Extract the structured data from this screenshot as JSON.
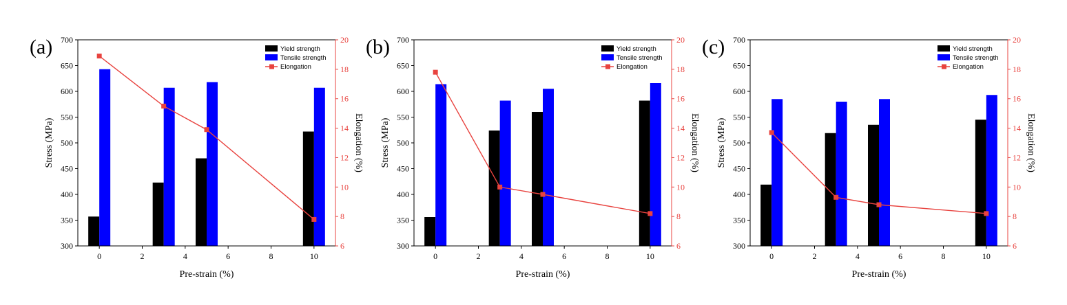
{
  "chart_data": [
    {
      "panel_label": "(a)",
      "type": "bar",
      "xlabel": "Pre-strain (%)",
      "ylabel": "Stress (MPa)",
      "y2label": "Elongation (%)",
      "xlim": [
        -1,
        11
      ],
      "ylim": [
        300,
        700
      ],
      "y2lim": [
        6,
        20
      ],
      "xticks": [
        0,
        2,
        4,
        6,
        8,
        10
      ],
      "yticks": [
        300,
        350,
        400,
        450,
        500,
        550,
        600,
        650,
        700
      ],
      "y2ticks": [
        6,
        8,
        10,
        12,
        14,
        16,
        18,
        20
      ],
      "x": [
        0,
        3,
        5,
        10
      ],
      "series": [
        {
          "name": "Yield strength",
          "kind": "bar",
          "color": "#000000",
          "values": [
            357,
            423,
            470,
            522
          ]
        },
        {
          "name": "Tensile strength",
          "kind": "bar",
          "color": "#0000ff",
          "values": [
            643,
            607,
            618,
            607
          ]
        },
        {
          "name": "Elongation",
          "kind": "line",
          "axis": "right",
          "color": "#e8433f",
          "values": [
            18.9,
            15.5,
            13.9,
            7.8
          ]
        }
      ],
      "legend_position": "top-right"
    },
    {
      "panel_label": "(b)",
      "type": "bar",
      "xlabel": "Pre-strain (%)",
      "ylabel": "Stress (MPa)",
      "y2label": "Elongation (%)",
      "xlim": [
        -1,
        11
      ],
      "ylim": [
        300,
        700
      ],
      "y2lim": [
        6,
        20
      ],
      "xticks": [
        0,
        2,
        4,
        6,
        8,
        10
      ],
      "yticks": [
        300,
        350,
        400,
        450,
        500,
        550,
        600,
        650,
        700
      ],
      "y2ticks": [
        6,
        8,
        10,
        12,
        14,
        16,
        18,
        20
      ],
      "x": [
        0,
        3,
        5,
        10
      ],
      "series": [
        {
          "name": "Yield strength",
          "kind": "bar",
          "color": "#000000",
          "values": [
            356,
            524,
            560,
            582
          ]
        },
        {
          "name": "Tensile strength",
          "kind": "bar",
          "color": "#0000ff",
          "values": [
            614,
            582,
            605,
            616
          ]
        },
        {
          "name": "Elongation",
          "kind": "line",
          "axis": "right",
          "color": "#e8433f",
          "values": [
            17.8,
            10.0,
            9.5,
            8.2
          ]
        }
      ],
      "legend_position": "top-right"
    },
    {
      "panel_label": "(c)",
      "type": "bar",
      "xlabel": "Pre-strain (%)",
      "ylabel": "Stress (MPa)",
      "y2label": "Elongation (%)",
      "xlim": [
        -1,
        11
      ],
      "ylim": [
        300,
        700
      ],
      "y2lim": [
        6,
        20
      ],
      "xticks": [
        0,
        2,
        4,
        6,
        8,
        10
      ],
      "yticks": [
        300,
        350,
        400,
        450,
        500,
        550,
        600,
        650,
        700
      ],
      "y2ticks": [
        6,
        8,
        10,
        12,
        14,
        16,
        18,
        20
      ],
      "x": [
        0,
        3,
        5,
        10
      ],
      "series": [
        {
          "name": "Yield strength",
          "kind": "bar",
          "color": "#000000",
          "values": [
            419,
            519,
            535,
            545
          ]
        },
        {
          "name": "Tensile strength",
          "kind": "bar",
          "color": "#0000ff",
          "values": [
            585,
            580,
            585,
            593
          ]
        },
        {
          "name": "Elongation",
          "kind": "line",
          "axis": "right",
          "color": "#e8433f",
          "values": [
            13.7,
            9.3,
            8.8,
            8.2
          ]
        }
      ],
      "legend_position": "top-right"
    }
  ]
}
